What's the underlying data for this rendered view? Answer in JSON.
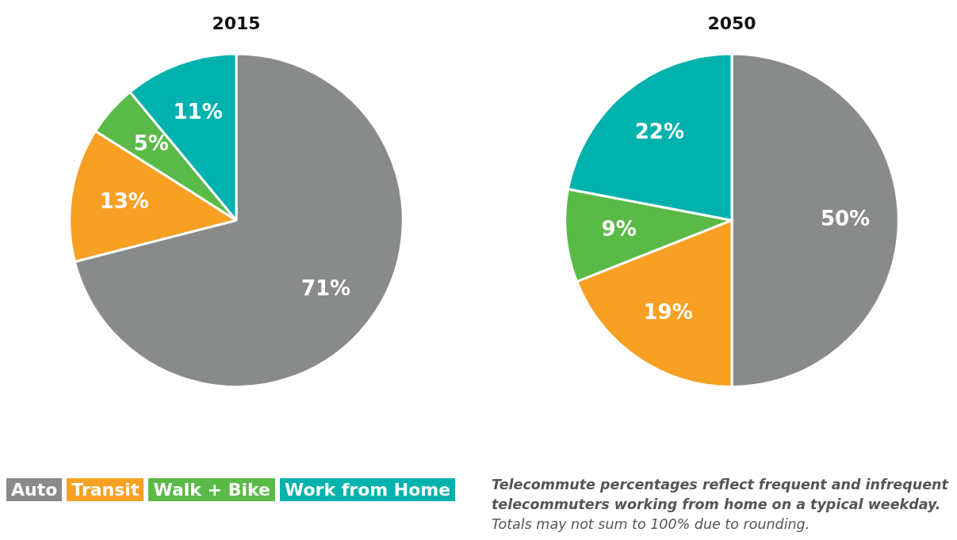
{
  "chart_data": [
    {
      "type": "pie",
      "title": "2015",
      "categories": [
        "Auto",
        "Transit",
        "Walk + Bike",
        "Work from Home"
      ],
      "values": [
        71,
        13,
        5,
        11
      ],
      "colors": [
        "#898b8b",
        "#f7a024",
        "#5aba47",
        "#00b2ad"
      ],
      "value_labels": [
        "71%",
        "13%",
        "5%",
        "11%"
      ],
      "legend": "bottom"
    },
    {
      "type": "pie",
      "title": "2050",
      "categories": [
        null,
        null,
        null,
        null
      ],
      "values": [
        50,
        19,
        9,
        22
      ],
      "colors": [
        "#898b8b",
        "#f7a024",
        "#5aba47",
        "#00b2ad"
      ],
      "value_labels": [
        "50%",
        "19%",
        "9%",
        "22%"
      ],
      "annotations": [
        "Telecommute percentages reflect frequent and infrequent telecommuters working from home on a typical weekday.",
        "Totals may not sum to 100% due to rounding."
      ]
    }
  ]
}
